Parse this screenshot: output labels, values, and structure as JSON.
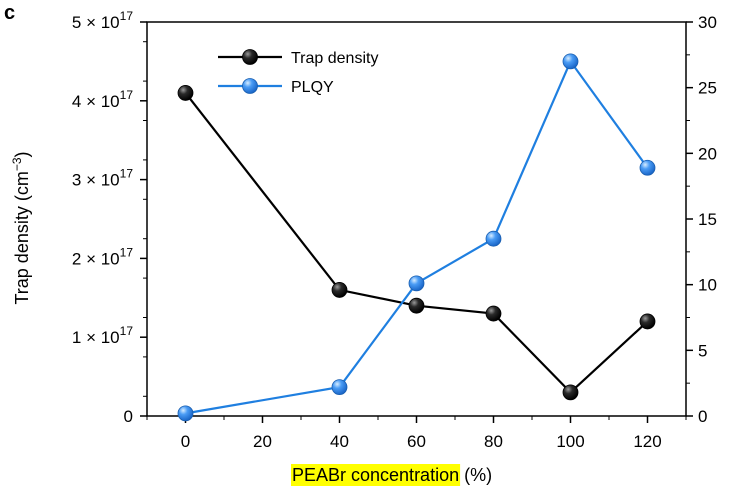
{
  "panel_label": "c",
  "chart_data": {
    "type": "line",
    "title": "",
    "x": [
      0,
      40,
      60,
      80,
      100,
      120
    ],
    "xlabel": {
      "highlighted": "PEABr concentration",
      "unit": "(%)"
    },
    "xlim": [
      -10,
      130
    ],
    "xticks": [
      0,
      20,
      40,
      60,
      80,
      100,
      120
    ],
    "y_left": {
      "label_main": "Trap density (cm",
      "label_sup": "−3",
      "label_end": ")",
      "lim": [
        0,
        5e+17
      ],
      "ticks": [
        {
          "value": 0,
          "mantissa": "0",
          "sup": ""
        },
        {
          "value": 1e+17,
          "mantissa": "1 × 10",
          "sup": "17"
        },
        {
          "value": 2e+17,
          "mantissa": "2 × 10",
          "sup": "17"
        },
        {
          "value": 3e+17,
          "mantissa": "3 × 10",
          "sup": "17"
        },
        {
          "value": 4e+17,
          "mantissa": "4 × 10",
          "sup": "17"
        },
        {
          "value": 5e+17,
          "mantissa": "5 × 10",
          "sup": "17"
        }
      ]
    },
    "y_right": {
      "label": "",
      "lim": [
        0,
        30
      ],
      "ticks": [
        0,
        5,
        10,
        15,
        20,
        25,
        30
      ]
    },
    "series": [
      {
        "name": "Trap density",
        "axis": "left",
        "color": "#000000",
        "marker_fill": "#111111",
        "values": [
          4.1e+17,
          1.6e+17,
          1.4e+17,
          1.3e+17,
          3e+16,
          1.2e+17
        ]
      },
      {
        "name": "PLQY",
        "axis": "right",
        "color": "#1f7fe0",
        "marker_fill": "#3a8ef0",
        "values": [
          0.2,
          2.2,
          10.1,
          13.5,
          27.0,
          18.9
        ]
      }
    ],
    "legend": "top-left",
    "grid": false,
    "highlight_color": "#ffff00"
  }
}
